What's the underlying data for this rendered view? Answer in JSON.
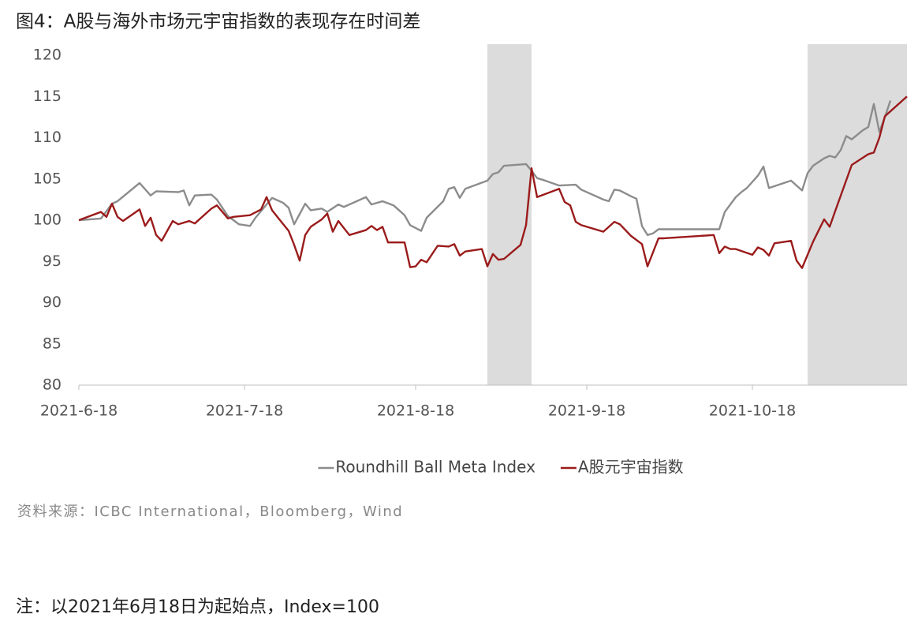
{
  "chart_data": {
    "type": "line",
    "title": "图4：A股与海外市场元宇宙指数的表现存在时间差",
    "source": "资料来源：ICBC International，Bloomberg，Wind",
    "note": "注：以2021年6月18日为起始点，Index=100",
    "xlim": [
      "2021-06-18",
      "2021-11-15"
    ],
    "xticks": [
      {
        "value": "2021-06-18",
        "label": "2021-6-18"
      },
      {
        "value": "2021-07-18",
        "label": "2021-7-18"
      },
      {
        "value": "2021-08-18",
        "label": "2021-8-18"
      },
      {
        "value": "2021-09-18",
        "label": "2021-9-18"
      },
      {
        "value": "2021-10-18",
        "label": "2021-10-18"
      }
    ],
    "ylim": [
      80,
      120
    ],
    "yticks": [
      80,
      85,
      90,
      95,
      100,
      105,
      110,
      115,
      120
    ],
    "grid": false,
    "legend": "bottom",
    "shaded_ranges": [
      [
        "2021-08-31",
        "2021-09-08"
      ],
      [
        "2021-10-28",
        "2021-11-15"
      ]
    ],
    "shade_color": "#dcdcdc",
    "series": [
      {
        "name": "Roundhill Ball Meta Index",
        "color": "#8c8c8c",
        "x": [
          "2021-06-18",
          "2021-06-22",
          "2021-06-24",
          "2021-06-25",
          "2021-06-29",
          "2021-07-01",
          "2021-07-02",
          "2021-07-06",
          "2021-07-07",
          "2021-07-08",
          "2021-07-09",
          "2021-07-12",
          "2021-07-13",
          "2021-07-15",
          "2021-07-17",
          "2021-07-19",
          "2021-07-20",
          "2021-07-23",
          "2021-07-25",
          "2021-07-26",
          "2021-07-27",
          "2021-07-29",
          "2021-07-30",
          "2021-08-01",
          "2021-08-02",
          "2021-08-04",
          "2021-08-05",
          "2021-08-09",
          "2021-08-10",
          "2021-08-12",
          "2021-08-14",
          "2021-08-16",
          "2021-08-17",
          "2021-08-19",
          "2021-08-20",
          "2021-08-23",
          "2021-08-24",
          "2021-08-25",
          "2021-08-26",
          "2021-08-27",
          "2021-08-31",
          "2021-09-01",
          "2021-09-02",
          "2021-09-03",
          "2021-09-07",
          "2021-09-08",
          "2021-09-09",
          "2021-09-10",
          "2021-09-13",
          "2021-09-16",
          "2021-09-17",
          "2021-09-21",
          "2021-09-22",
          "2021-09-23",
          "2021-09-24",
          "2021-09-26",
          "2021-09-27",
          "2021-09-28",
          "2021-09-29",
          "2021-09-30",
          "2021-10-01",
          "2021-10-12",
          "2021-10-13",
          "2021-10-15",
          "2021-10-16",
          "2021-10-17",
          "2021-10-19",
          "2021-10-20",
          "2021-10-21",
          "2021-10-25",
          "2021-10-27",
          "2021-10-28",
          "2021-10-29",
          "2021-10-31",
          "2021-11-01",
          "2021-11-02",
          "2021-11-03",
          "2021-11-04",
          "2021-11-05",
          "2021-11-07",
          "2021-11-08",
          "2021-11-09",
          "2021-11-10",
          "2021-11-11",
          "2021-11-12"
        ],
        "values": [
          100,
          100.2,
          102,
          102.3,
          104.5,
          103,
          103.5,
          103.4,
          103.6,
          101.8,
          103,
          103.1,
          102.5,
          100.5,
          99.5,
          99.3,
          100.3,
          102.7,
          102.1,
          101.5,
          99.5,
          102,
          101.2,
          101.4,
          101,
          101.9,
          101.6,
          102.8,
          101.9,
          102.3,
          101.8,
          100.6,
          99.4,
          98.7,
          100.3,
          102.3,
          103.8,
          104,
          102.7,
          103.8,
          104.8,
          105.6,
          105.8,
          106.6,
          106.8,
          106,
          105.1,
          104.9,
          104.2,
          104.3,
          103.7,
          102.5,
          102.3,
          103.7,
          103.6,
          102.9,
          102.6,
          99.3,
          98.2,
          98.4,
          98.9,
          98.9,
          101,
          102.8,
          103.4,
          103.9,
          105.4,
          106.5,
          103.9,
          104.8,
          103.6,
          105.7,
          106.6,
          107.5,
          107.8,
          107.6,
          108.5,
          110.2,
          109.8,
          110.9,
          111.3,
          114.1,
          110.7,
          112.5,
          114.5
        ]
      },
      {
        "name": "A股元宇宙指数",
        "color": "#9b1b1b",
        "x": [
          "2021-06-18",
          "2021-06-22",
          "2021-06-23",
          "2021-06-24",
          "2021-06-25",
          "2021-06-26",
          "2021-06-29",
          "2021-06-30",
          "2021-07-01",
          "2021-07-02",
          "2021-07-03",
          "2021-07-05",
          "2021-07-06",
          "2021-07-08",
          "2021-07-09",
          "2021-07-12",
          "2021-07-13",
          "2021-07-15",
          "2021-07-16",
          "2021-07-19",
          "2021-07-21",
          "2021-07-22",
          "2021-07-23",
          "2021-07-26",
          "2021-07-27",
          "2021-07-28",
          "2021-07-29",
          "2021-07-30",
          "2021-08-01",
          "2021-08-02",
          "2021-08-03",
          "2021-08-04",
          "2021-08-06",
          "2021-08-09",
          "2021-08-10",
          "2021-08-11",
          "2021-08-12",
          "2021-08-13",
          "2021-08-16",
          "2021-08-17",
          "2021-08-18",
          "2021-08-19",
          "2021-08-20",
          "2021-08-22",
          "2021-08-24",
          "2021-08-25",
          "2021-08-26",
          "2021-08-27",
          "2021-08-30",
          "2021-08-31",
          "2021-09-01",
          "2021-09-02",
          "2021-09-03",
          "2021-09-06",
          "2021-09-07",
          "2021-09-08",
          "2021-09-09",
          "2021-09-13",
          "2021-09-14",
          "2021-09-15",
          "2021-09-16",
          "2021-09-17",
          "2021-09-21",
          "2021-09-23",
          "2021-09-24",
          "2021-09-26",
          "2021-09-28",
          "2021-09-29",
          "2021-10-01",
          "2021-10-02",
          "2021-10-11",
          "2021-10-12",
          "2021-10-13",
          "2021-10-14",
          "2021-10-15",
          "2021-10-18",
          "2021-10-19",
          "2021-10-20",
          "2021-10-21",
          "2021-10-22",
          "2021-10-25",
          "2021-10-26",
          "2021-10-27",
          "2021-10-29",
          "2021-10-31",
          "2021-11-01",
          "2021-11-02",
          "2021-11-05",
          "2021-11-08",
          "2021-11-09",
          "2021-11-10",
          "2021-11-11",
          "2021-11-15"
        ],
        "values": [
          100,
          101,
          100.4,
          102,
          100.4,
          99.9,
          101.3,
          99.3,
          100.3,
          98.2,
          97.5,
          99.9,
          99.5,
          99.9,
          99.6,
          101.4,
          101.8,
          100.2,
          100.4,
          100.6,
          101.3,
          102.8,
          101.2,
          98.7,
          97,
          95.1,
          98.2,
          99.2,
          100.1,
          100.8,
          98.6,
          99.9,
          98.2,
          98.8,
          99.3,
          98.8,
          99.2,
          97.3,
          97.3,
          94.3,
          94.4,
          95.2,
          94.9,
          96.9,
          96.8,
          97.1,
          95.7,
          96.2,
          96.5,
          94.4,
          95.9,
          95.2,
          95.3,
          97,
          99.4,
          106.3,
          102.8,
          103.8,
          102.2,
          101.8,
          99.8,
          99.4,
          98.6,
          99.8,
          99.5,
          98.1,
          97.1,
          94.4,
          97.8,
          97.8,
          98.2,
          96,
          96.8,
          96.5,
          96.5,
          95.8,
          96.7,
          96.4,
          95.7,
          97.2,
          97.5,
          95.1,
          94.2,
          97.4,
          100.1,
          99.2,
          101.1,
          106.7,
          108,
          108.2,
          110,
          112.6,
          115
        ]
      }
    ]
  }
}
